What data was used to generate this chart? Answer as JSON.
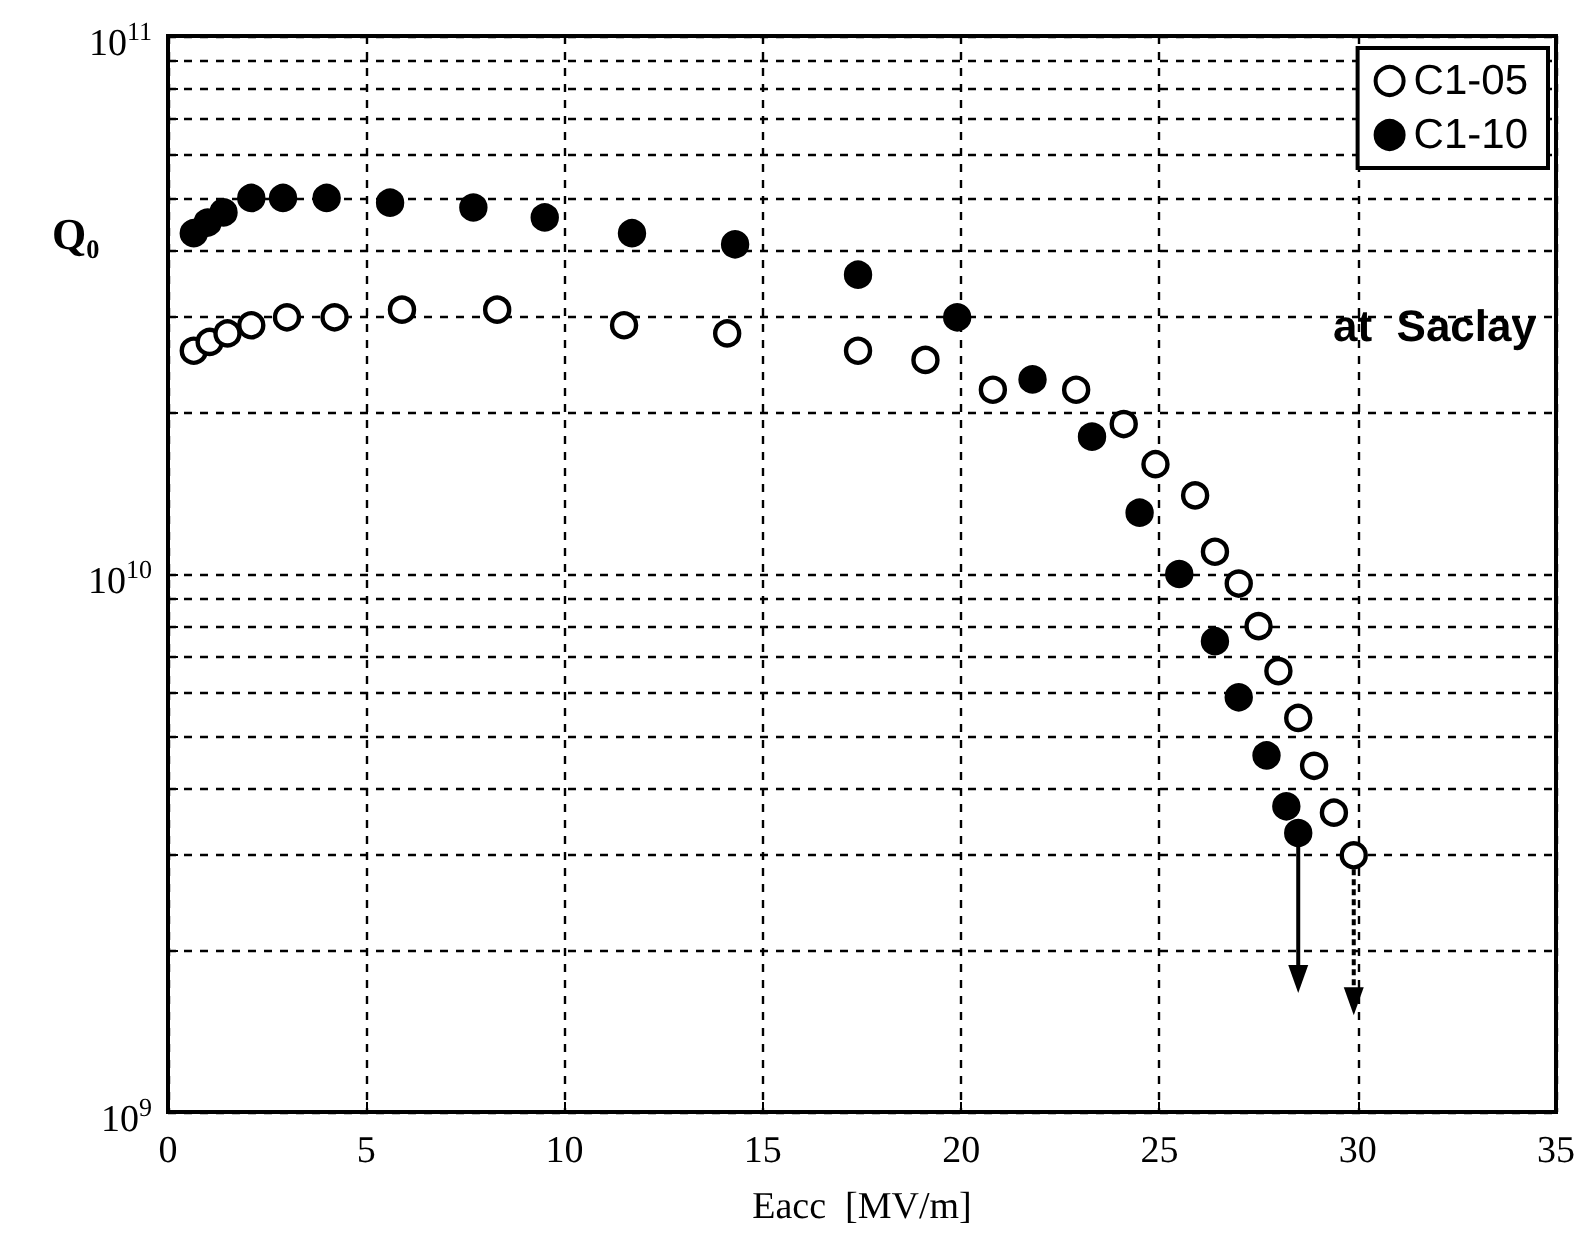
{
  "chart_data": {
    "type": "scatter",
    "xlabel": "Eacc  [MV/m]",
    "ylabel": "Q₀",
    "log": "y",
    "grid": true,
    "legend": "top right",
    "marker": "circle",
    "xlim": [
      0,
      35
    ],
    "xticks": [
      0,
      5,
      10,
      15,
      20,
      25,
      30,
      35
    ],
    "ylim": [
      1000000000.0,
      100000000000.0
    ],
    "yticks": [
      {
        "value": 1000000000.0,
        "label": "10$^{9}$"
      },
      {
        "value": 10000000000.0,
        "label": "10$^{10}$"
      },
      {
        "value": 100000000000.0,
        "label": "10$^{11}$"
      }
    ],
    "annotations": [
      "at  Saclay"
    ],
    "series": [
      {
        "name": "C1-05",
        "color": "#ffffff",
        "x": [
          0.65,
          1.05,
          1.5,
          2.1,
          3.0,
          4.2,
          5.9,
          8.3,
          11.5,
          14.1,
          17.4,
          19.1,
          20.8,
          22.9,
          24.1,
          24.9,
          25.9,
          26.4,
          27.0,
          27.5,
          28.0,
          28.5,
          28.9,
          29.4,
          29.9
        ],
        "values": [
          26000000000.0,
          27000000000.0,
          28000000000.0,
          29000000000.0,
          30000000000.0,
          30000000000.0,
          31000000000.0,
          31000000000.0,
          29000000000.0,
          28000000000.0,
          26000000000.0,
          25000000000.0,
          22000000000.0,
          22000000000.0,
          19000000000.0,
          16000000000.0,
          14000000000.0,
          11000000000.0,
          9600000000.0,
          8000000000.0,
          6600000000.0,
          5400000000.0,
          4400000000.0,
          3600000000.0,
          3000000000.0
        ]
      },
      {
        "name": "C1-10",
        "color": "#000000",
        "x": [
          0.65,
          1.0,
          1.4,
          2.1,
          2.9,
          4.0,
          5.6,
          7.7,
          9.5,
          11.7,
          14.3,
          17.4,
          19.9,
          21.8,
          23.3,
          24.5,
          25.5,
          26.4,
          27.0,
          27.7,
          28.2,
          28.5
        ],
        "values": [
          43000000000.0,
          45000000000.0,
          47000000000.0,
          50000000000.0,
          50000000000.0,
          50000000000.0,
          49000000000.0,
          48000000000.0,
          46000000000.0,
          43000000000.0,
          41000000000.0,
          36000000000.0,
          30000000000.0,
          23000000000.0,
          18000000000.0,
          13000000000.0,
          10000000000.0,
          7500000000.0,
          5900000000.0,
          4600000000.0,
          3700000000.0,
          3300000000.0
        ]
      }
    ]
  }
}
